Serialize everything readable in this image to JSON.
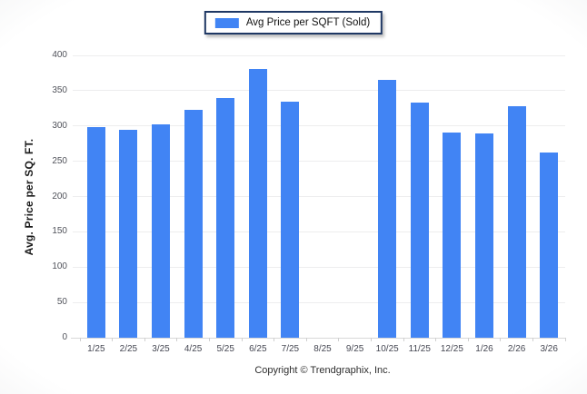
{
  "legend": {
    "label": "Avg Price per SQFT (Sold)",
    "swatch_color": "#4184F4"
  },
  "footer": {
    "copyright": "Copyright © Trendgraphix, Inc."
  },
  "colors": {
    "bar": "#4184F4",
    "legend_border": "#1F3864",
    "gridline": "#EDEDEE",
    "axis_line": "#D8D8D8",
    "tick_label": "#50525A",
    "axis_title": "#1B1B1B",
    "background_edge": "#E2E3E5"
  },
  "chart_data": {
    "type": "bar",
    "title": "Avg Price per SQFT (Sold)",
    "categories": [
      "1/25",
      "2/25",
      "3/25",
      "4/25",
      "5/25",
      "6/25",
      "7/25",
      "8/25",
      "9/25",
      "10/25",
      "11/25",
      "12/25",
      "1/26",
      "2/26",
      "3/26"
    ],
    "values": [
      299,
      294,
      302,
      323,
      340,
      381,
      334,
      null,
      null,
      365,
      333,
      291,
      290,
      328,
      262
    ],
    "xlabel": "",
    "ylabel": "Avg. Price per SQ. FT.",
    "ylim": [
      0,
      400
    ],
    "ytick_step": 50,
    "grid": true,
    "legend_position": "top-center"
  }
}
